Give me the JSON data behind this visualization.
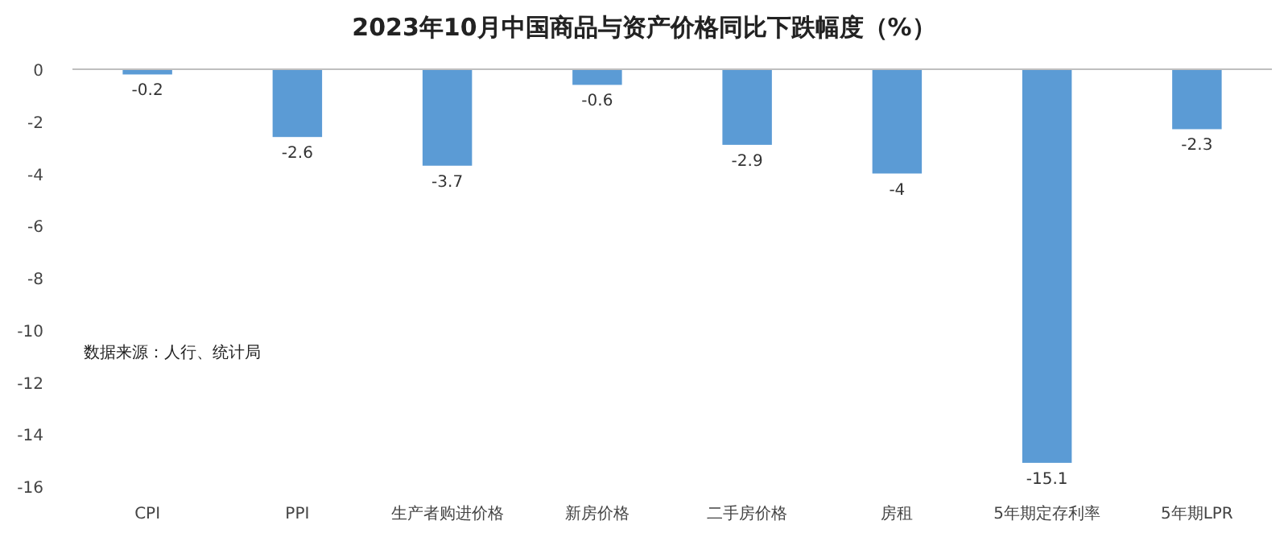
{
  "chart_data": {
    "type": "bar",
    "title": "2023年10月中国商品与资产价格同比下跌幅度（%）",
    "categories": [
      "CPI",
      "PPI",
      "生产者购进价格",
      "新房价格",
      "二手房价格",
      "房租",
      "5年期定存利率",
      "5年期LPR"
    ],
    "values": [
      -0.2,
      -2.6,
      -3.7,
      -0.6,
      -2.9,
      -4,
      -15.1,
      -2.3
    ],
    "color": "#5b9bd5",
    "data_labels": true,
    "ylim": [
      -16,
      0
    ],
    "yticks": [
      0,
      -2,
      -4,
      -6,
      -8,
      -10,
      -12,
      -14,
      -16
    ],
    "grid": false,
    "annotations": [
      "数据来源：人行、统计局"
    ]
  }
}
